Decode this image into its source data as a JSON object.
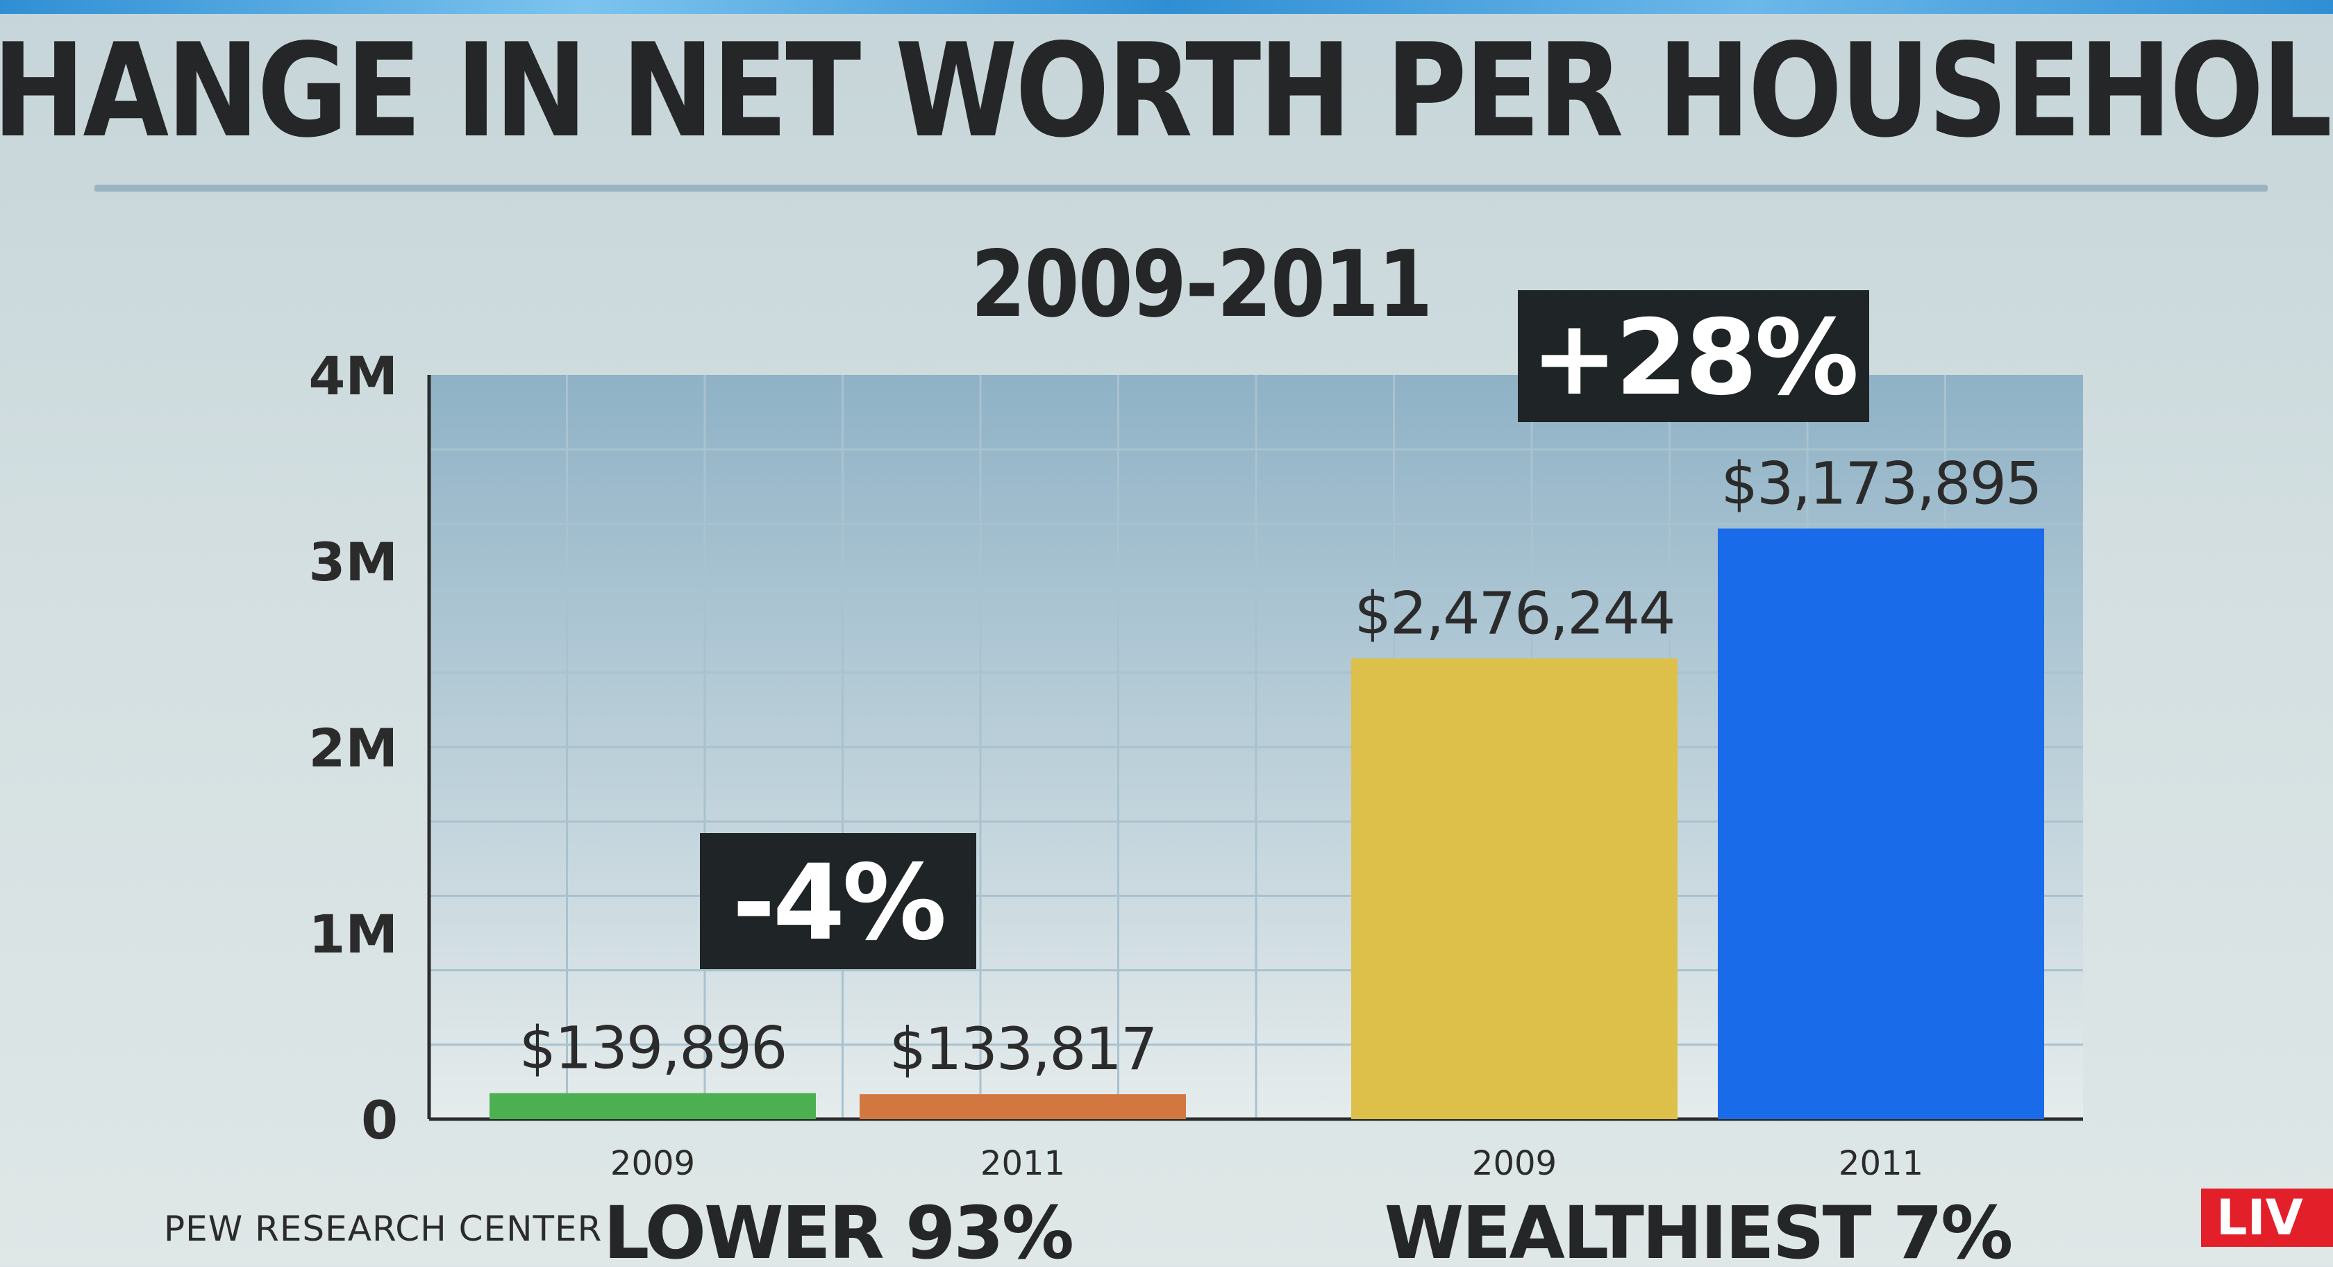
{
  "header": {
    "title": "CHANGE IN NET WORTH PER HOUSEHOLD",
    "subtitle": "2009-2011"
  },
  "source": "PEW RESEARCH CENTER",
  "live_label": "LIV",
  "colors": {
    "lower_2009": "#4caf50",
    "lower_2011": "#d2773f",
    "wealthy_2009": "#dcc04a",
    "wealthy_2011": "#1a6bea",
    "badge_bg": "#1f2526",
    "plot_bg_top": "#8fb2c6",
    "plot_bg_bottom": "#e6ecec"
  },
  "chart_data": {
    "type": "bar",
    "title": "CHANGE IN NET WORTH PER HOUSEHOLD",
    "subtitle": "2009-2011",
    "ylim": [
      0,
      4000000
    ],
    "y_ticks": [
      {
        "value": 0,
        "label": "0"
      },
      {
        "value": 1000000,
        "label": "1M"
      },
      {
        "value": 2000000,
        "label": "2M"
      },
      {
        "value": 3000000,
        "label": "3M"
      },
      {
        "value": 4000000,
        "label": "4M"
      }
    ],
    "grid": true,
    "groups": [
      {
        "name": "LOWER 93%",
        "change_label": "-4%",
        "bars": [
          {
            "category": "2009",
            "value": 139896,
            "label": "$139,896",
            "color": "#4caf50"
          },
          {
            "category": "2011",
            "value": 133817,
            "label": "$133,817",
            "color": "#d2773f"
          }
        ]
      },
      {
        "name": "WEALTHIEST 7%",
        "change_label": "+28%",
        "bars": [
          {
            "category": "2009",
            "value": 2476244,
            "label": "$2,476,244",
            "color": "#dcc04a"
          },
          {
            "category": "2011",
            "value": 3173895,
            "label": "$3,173,895",
            "color": "#1a6bea"
          }
        ]
      }
    ]
  }
}
